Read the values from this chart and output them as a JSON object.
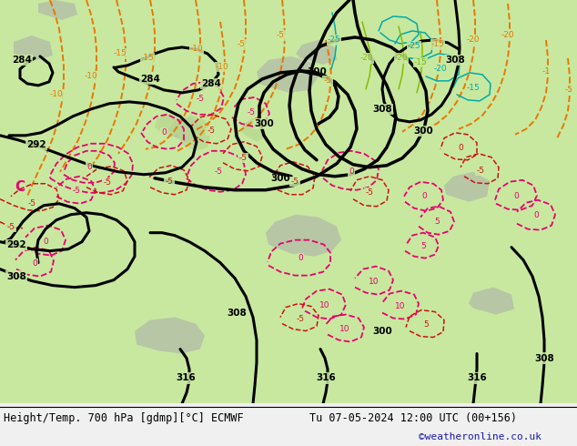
{
  "title_left": "Height/Temp. 700 hPa [gdmp][°C] ECMWF",
  "title_right": "Tu 07-05-2024 12:00 UTC (00+156)",
  "credit": "©weatheronline.co.uk",
  "map_bg": "#e8e8e8",
  "land_green": "#c8e8a0",
  "land_green2": "#b8d890",
  "grey_terrain": "#b0b0b0",
  "footer_bg": "#f0f0f0",
  "footer_text_color": "#000000",
  "credit_color": "#1a1aaa",
  "fig_width": 6.34,
  "fig_height": 4.9,
  "dpi": 100,
  "black_lw": 2.2,
  "orange_lw": 1.4,
  "pink_lw": 1.3,
  "red_lw": 1.1,
  "green_lw": 1.1,
  "orange": "#e87800",
  "pink": "#e8006e",
  "red": "#cc1111",
  "teal": "#00aaaa",
  "lime": "#88bb00"
}
